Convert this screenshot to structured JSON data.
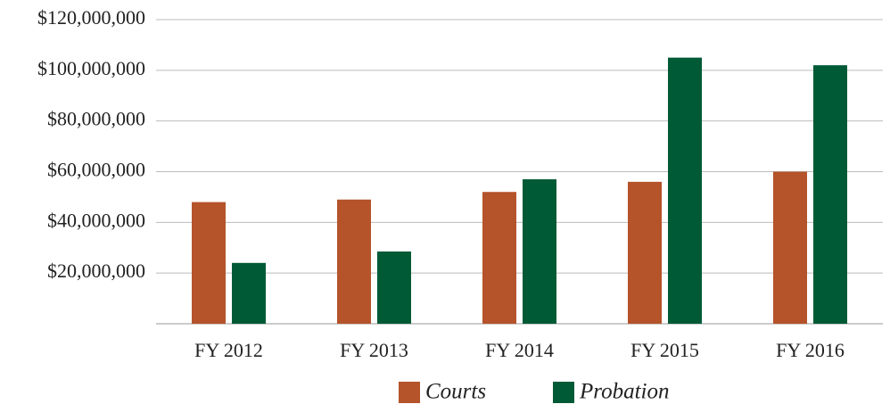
{
  "chart_data": {
    "type": "bar",
    "categories": [
      "FY 2012",
      "FY 2013",
      "FY 2014",
      "FY 2015",
      "FY 2016"
    ],
    "series": [
      {
        "name": "Courts",
        "color": "#b5532a",
        "values": [
          48000000,
          49000000,
          52000000,
          56000000,
          60000000
        ]
      },
      {
        "name": "Probation",
        "color": "#005a36",
        "values": [
          24000000,
          28500000,
          57000000,
          105000000,
          102000000
        ]
      }
    ],
    "ylim": [
      0,
      120000000
    ],
    "yticks": [
      {
        "value": 20000000,
        "label": "$20,000,000"
      },
      {
        "value": 40000000,
        "label": "$40,000,000"
      },
      {
        "value": 60000000,
        "label": "$60,000,000"
      },
      {
        "value": 80000000,
        "label": "$80,000,000"
      },
      {
        "value": 100000000,
        "label": "$100,000,000"
      },
      {
        "value": 120000000,
        "label": "$120,000,000"
      }
    ],
    "grid": true,
    "legend": "bottom"
  }
}
